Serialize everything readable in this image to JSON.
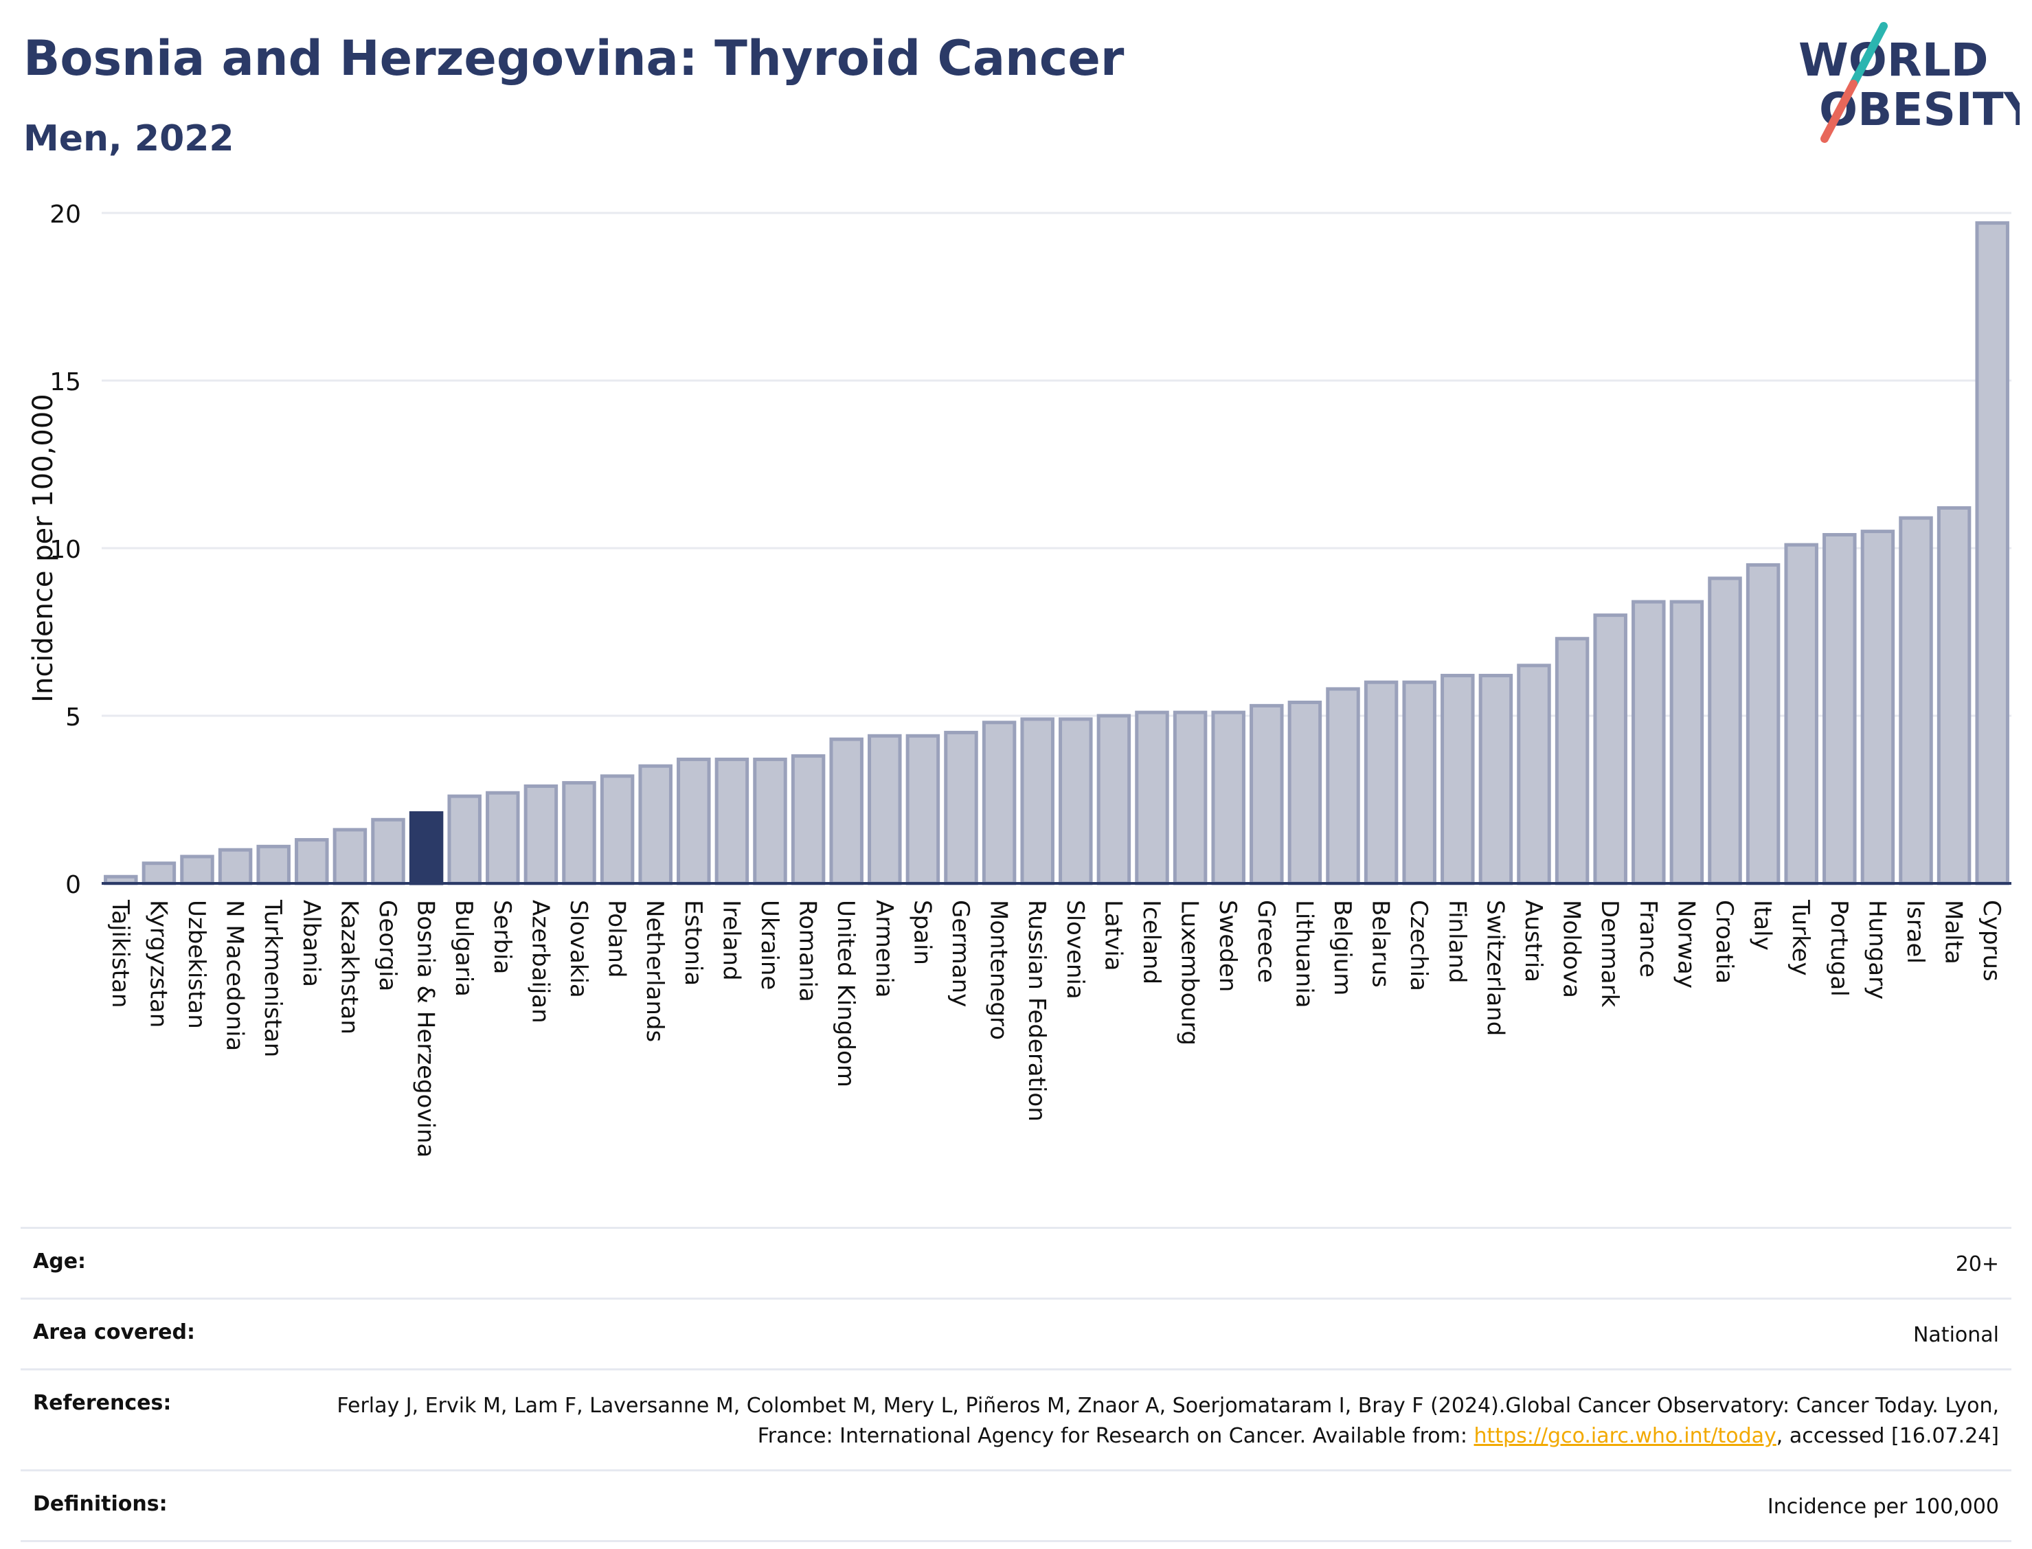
{
  "header": {
    "title": "Bosnia and Herzegovina: Thyroid Cancer",
    "subtitle": "Men, 2022"
  },
  "logo": {
    "line1": "WORLD",
    "line2": "OBESITY",
    "colors": {
      "text": "#2b3a67",
      "slash_teal": "#2bb5b0",
      "slash_coral": "#e8675a"
    }
  },
  "chart_data": {
    "type": "bar",
    "ylabel": "Incidence per 100,000",
    "ylim": [
      0,
      20
    ],
    "yticks": [
      0,
      5,
      10,
      15,
      20
    ],
    "grid": true,
    "highlight": "Bosnia & Herzegovina",
    "colors": {
      "bar": "#c0c4d2",
      "bar_edge": "#9aa1bb",
      "highlight": "#2b3a67",
      "axis": "#2b3a67",
      "grid": "#e8eaf0"
    },
    "categories": [
      "Tajikistan",
      "Kyrgyzstan",
      "Uzbekistan",
      "N Macedonia",
      "Turkmenistan",
      "Albania",
      "Kazakhstan",
      "Georgia",
      "Bosnia & Herzegovina",
      "Bulgaria",
      "Serbia",
      "Azerbaijan",
      "Slovakia",
      "Poland",
      "Netherlands",
      "Estonia",
      "Ireland",
      "Ukraine",
      "Romania",
      "United Kingdom",
      "Armenia",
      "Spain",
      "Germany",
      "Montenegro",
      "Russian Federation",
      "Slovenia",
      "Latvia",
      "Iceland",
      "Luxembourg",
      "Sweden",
      "Greece",
      "Lithuania",
      "Belgium",
      "Belarus",
      "Czechia",
      "Finland",
      "Switzerland",
      "Austria",
      "Moldova",
      "Denmark",
      "France",
      "Norway",
      "Croatia",
      "Italy",
      "Turkey",
      "Portugal",
      "Hungary",
      "Israel",
      "Malta",
      "Cyprus"
    ],
    "values": [
      0.2,
      0.6,
      0.8,
      1.0,
      1.1,
      1.3,
      1.6,
      1.9,
      2.1,
      2.6,
      2.7,
      2.9,
      3.0,
      3.2,
      3.5,
      3.7,
      3.7,
      3.7,
      3.8,
      4.3,
      4.4,
      4.4,
      4.5,
      4.8,
      4.9,
      4.9,
      5.0,
      5.1,
      5.1,
      5.1,
      5.3,
      5.4,
      5.8,
      6.0,
      6.0,
      6.2,
      6.2,
      6.5,
      7.3,
      8.0,
      8.4,
      8.4,
      9.1,
      9.5,
      10.1,
      10.4,
      10.5,
      10.9,
      11.2,
      19.7
    ]
  },
  "info": {
    "age_label": "Age:",
    "age_value": "20+",
    "area_label": "Area covered:",
    "area_value": "National",
    "references_label": "References:",
    "references_text": "Ferlay J, Ervik M, Lam F, Laversanne M, Colombet M, Mery L, Piñeros M, Znaor A, Soerjomataram I, Bray F (2024).Global Cancer Observatory: Cancer Today. Lyon, France: International Agency for Research on Cancer. Available from: ",
    "references_link": "https://gco.iarc.who.int/today",
    "references_suffix": ", accessed [16.07.24]",
    "definitions_label": "Definitions:",
    "definitions_value": "Incidence per 100,000"
  }
}
